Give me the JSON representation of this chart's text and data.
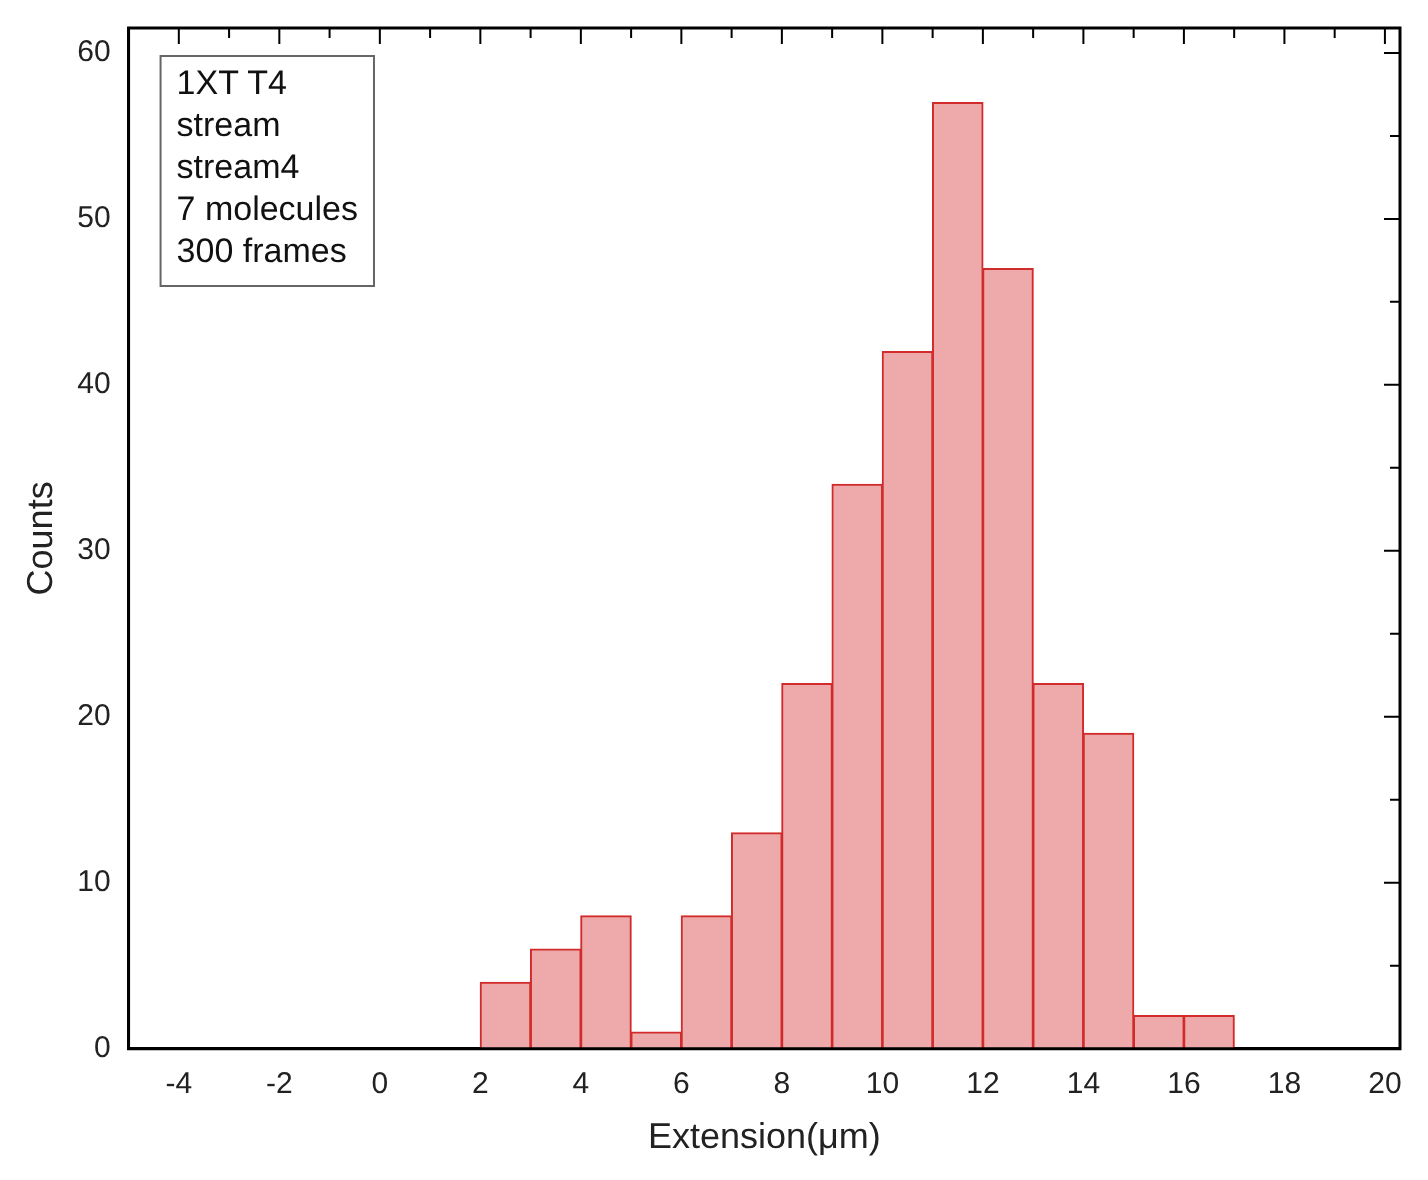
{
  "chart_data": {
    "type": "histogram",
    "xlabel": "Extension(μm)",
    "ylabel": "Counts",
    "bins": [
      2,
      3,
      4,
      5,
      6,
      7,
      8,
      9,
      10,
      11,
      12,
      13,
      14,
      15,
      16,
      17
    ],
    "values": [
      4,
      6,
      8,
      1,
      8,
      13,
      22,
      34,
      42,
      57,
      47,
      22,
      19,
      2,
      2
    ],
    "color": "#eeaaaa",
    "xlim": [
      -5,
      20.3
    ],
    "xticks": [
      {
        "value": -5,
        "label": null
      },
      -4,
      {
        "value": -3,
        "label": null
      },
      -2,
      {
        "value": -1,
        "label": null
      },
      0,
      {
        "value": 1,
        "label": null
      },
      2,
      {
        "value": 3,
        "label": null
      },
      4,
      {
        "value": 5,
        "label": null
      },
      6,
      {
        "value": 7,
        "label": null
      },
      8,
      {
        "value": 9,
        "label": null
      },
      10,
      {
        "value": 11,
        "label": null
      },
      12,
      {
        "value": 13,
        "label": null
      },
      14,
      {
        "value": 15,
        "label": null
      },
      16,
      {
        "value": 17,
        "label": null
      },
      18,
      {
        "value": 19,
        "label": null
      },
      20
    ],
    "ylim": [
      0,
      61.5
    ],
    "yticks": [
      0,
      {
        "value": 5,
        "label": null
      },
      10,
      {
        "value": 15,
        "label": null
      },
      20,
      {
        "value": 25,
        "label": null
      },
      30,
      {
        "value": 35,
        "label": null
      },
      40,
      {
        "value": 45,
        "label": null
      },
      50,
      {
        "value": 55,
        "label": null
      },
      60
    ],
    "annotations": [
      "1XT T4",
      "stream",
      "stream4",
      "7 molecules",
      "300 frames"
    ],
    "grid": false,
    "legend": false
  }
}
